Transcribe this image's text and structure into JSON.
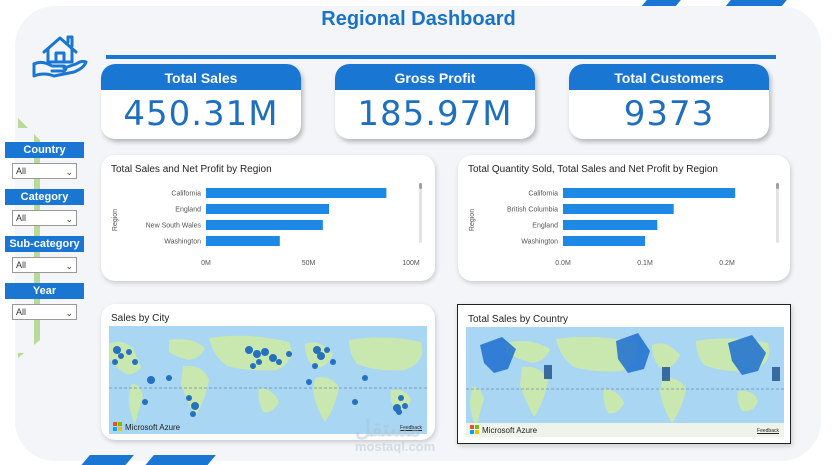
{
  "header": {
    "title": "Regional Dashboard"
  },
  "kpis": [
    {
      "label": "Total Sales",
      "value": "450.31M"
    },
    {
      "label": "Gross Profit",
      "value": "185.97M"
    },
    {
      "label": "Total Customers",
      "value": "9373"
    }
  ],
  "slicers": [
    {
      "label": "Country",
      "value": "All"
    },
    {
      "label": "Category",
      "value": "All"
    },
    {
      "label": "Sub-category",
      "value": "All"
    },
    {
      "label": "Year",
      "value": "All"
    }
  ],
  "maps": {
    "city": {
      "title": "Sales by City"
    },
    "country": {
      "title": "Total Sales by Country"
    },
    "attribution": "Microsoft Azure",
    "feedback": "Feedback"
  },
  "watermark": {
    "ar": "مستقل",
    "en": "mostaql.com"
  },
  "colors": {
    "accent": "#1976d2",
    "bar": "#1e88e5",
    "map_water": "#a9d6f2",
    "map_land": "#c9e8b0"
  },
  "chart_data": [
    {
      "type": "bar",
      "orientation": "horizontal",
      "title": "Total Sales and Net Profit by Region",
      "ylabel": "Region",
      "categories": [
        "California",
        "England",
        "New South Wales",
        "Washington"
      ],
      "values": [
        88,
        60,
        57,
        36
      ],
      "xlim": [
        0,
        100
      ],
      "ticks": [
        "0M",
        "50M",
        "100M"
      ],
      "tick_values": [
        0,
        50,
        100
      ]
    },
    {
      "type": "bar",
      "orientation": "horizontal",
      "title": "Total Quantity Sold, Total Sales and Net Profit by Region",
      "ylabel": "Region",
      "categories": [
        "California",
        "British Columbia",
        "England",
        "Washington"
      ],
      "values": [
        0.21,
        0.135,
        0.115,
        0.1
      ],
      "xlim": [
        0,
        0.25
      ],
      "ticks": [
        "0.0M",
        "0.1M",
        "0.2M"
      ],
      "tick_values": [
        0,
        0.1,
        0.2
      ]
    }
  ]
}
